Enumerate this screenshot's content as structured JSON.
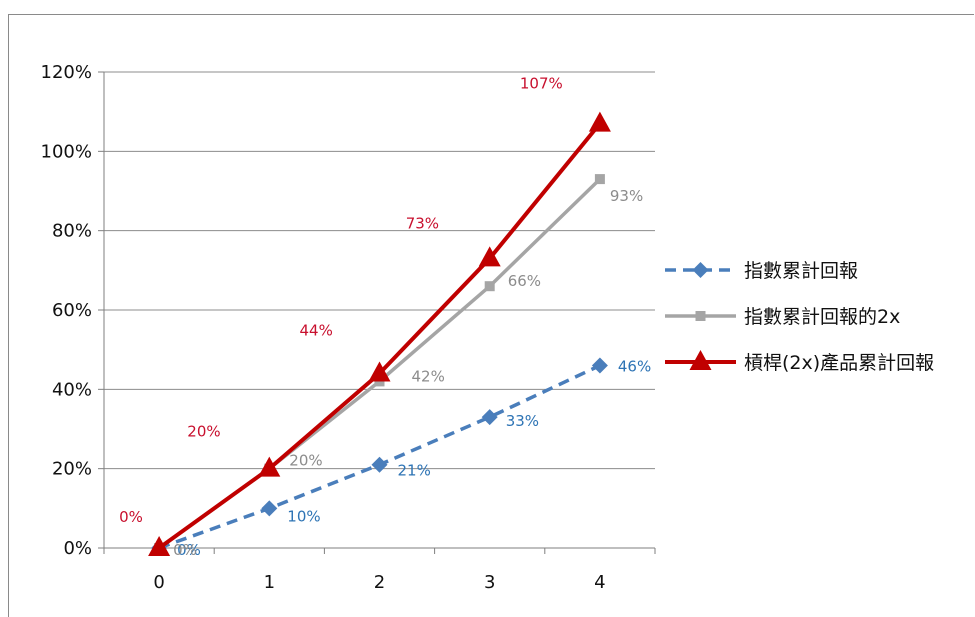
{
  "chart_data": {
    "type": "line",
    "title": "",
    "xlabel": "",
    "ylabel": "",
    "categories": [
      "0",
      "1",
      "2",
      "3",
      "4"
    ],
    "y_ticks": [
      "0%",
      "20%",
      "40%",
      "60%",
      "80%",
      "100%",
      "120%"
    ],
    "ylim": [
      0,
      120
    ],
    "grid": true,
    "legend_position": "right",
    "series": [
      {
        "name": "指數累計回報",
        "values": [
          0,
          10,
          21,
          33,
          46
        ],
        "labels": [
          "0%",
          "10%",
          "21%",
          "33%",
          "46%"
        ],
        "color": "#4a7ebb",
        "line_style": "dashed",
        "marker": "diamond"
      },
      {
        "name": "指數累計回報的2x",
        "values": [
          0,
          20,
          42,
          66,
          93
        ],
        "labels": [
          "0%",
          "20%",
          "42%",
          "66%",
          "93%"
        ],
        "color": "#a5a5a5",
        "line_style": "solid",
        "marker": "square"
      },
      {
        "name": "槓桿(2x)產品累計回報",
        "values": [
          0,
          20,
          44,
          73,
          107
        ],
        "labels": [
          "0%",
          "20%",
          "44%",
          "73%",
          "107%"
        ],
        "color": "#c00000",
        "line_style": "solid",
        "marker": "triangle"
      }
    ]
  }
}
